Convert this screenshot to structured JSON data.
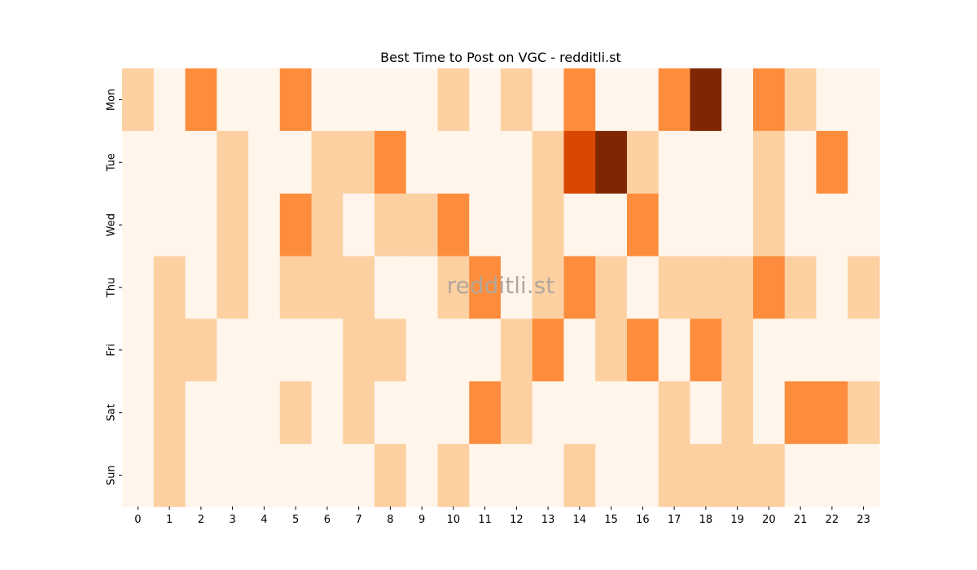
{
  "chart_data": {
    "type": "heatmap",
    "title": "Best Time to Post on VGC - redditli.st",
    "xlabel": "",
    "ylabel": "",
    "x_categories": [
      "0",
      "1",
      "2",
      "3",
      "4",
      "5",
      "6",
      "7",
      "8",
      "9",
      "10",
      "11",
      "12",
      "13",
      "14",
      "15",
      "16",
      "17",
      "18",
      "19",
      "20",
      "21",
      "22",
      "23"
    ],
    "y_categories": [
      "Mon",
      "Tue",
      "Wed",
      "Thu",
      "Fri",
      "Sat",
      "Sun"
    ],
    "values": [
      [
        1,
        0,
        2,
        0,
        0,
        2,
        0,
        0,
        0,
        0,
        1,
        0,
        1,
        0,
        2,
        0,
        0,
        2,
        4,
        0,
        2,
        1,
        0,
        0
      ],
      [
        0,
        0,
        0,
        1,
        0,
        0,
        1,
        1,
        2,
        0,
        0,
        0,
        0,
        1,
        3,
        4,
        1,
        0,
        0,
        0,
        1,
        0,
        2,
        0
      ],
      [
        0,
        0,
        0,
        1,
        0,
        2,
        1,
        0,
        1,
        1,
        2,
        0,
        0,
        1,
        0,
        0,
        2,
        0,
        0,
        0,
        1,
        0,
        0,
        0
      ],
      [
        0,
        1,
        0,
        1,
        0,
        1,
        1,
        1,
        0,
        0,
        1,
        2,
        0,
        1,
        2,
        1,
        0,
        1,
        1,
        1,
        2,
        1,
        0,
        1
      ],
      [
        0,
        1,
        1,
        0,
        0,
        0,
        0,
        1,
        1,
        0,
        0,
        0,
        1,
        2,
        0,
        1,
        2,
        0,
        2,
        1,
        0,
        0,
        0,
        0
      ],
      [
        0,
        1,
        0,
        0,
        0,
        1,
        0,
        1,
        0,
        0,
        0,
        2,
        1,
        0,
        0,
        0,
        0,
        1,
        0,
        1,
        0,
        2,
        2,
        1
      ],
      [
        0,
        1,
        0,
        0,
        0,
        0,
        0,
        0,
        1,
        0,
        1,
        0,
        0,
        0,
        1,
        0,
        0,
        1,
        1,
        1,
        1,
        0,
        0,
        0
      ]
    ],
    "colormap": [
      "#fff5eb",
      "#fdd0a2",
      "#fd8d3c",
      "#d94801",
      "#7f2704"
    ],
    "colorbar": false,
    "grid": false,
    "watermark": "redditli.st"
  }
}
